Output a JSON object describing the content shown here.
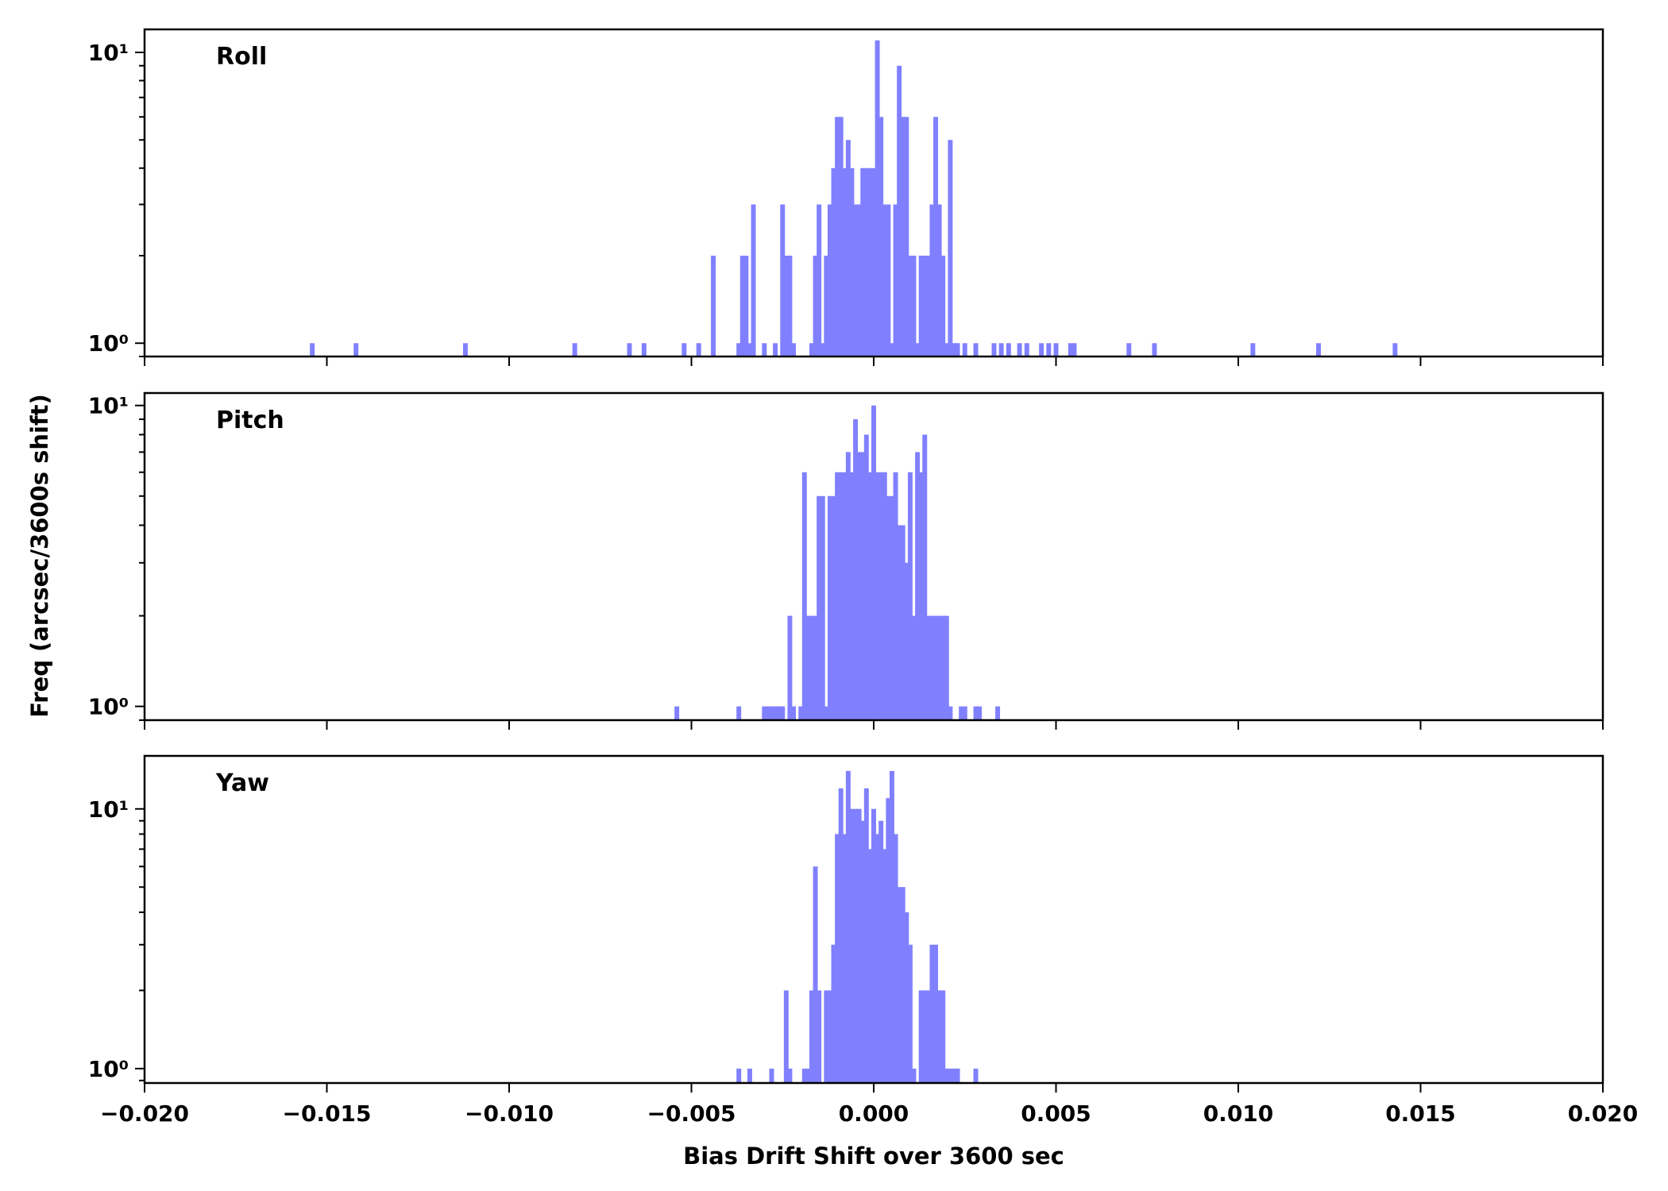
{
  "chart_data": {
    "type": "bar",
    "xlabel": "Bias Drift Shift over 3600 sec",
    "ylabel": "Freq (arcsec/3600s shift)",
    "xlim": [
      -0.02,
      0.02
    ],
    "x_ticks": [
      -0.02,
      -0.015,
      -0.01,
      -0.005,
      0.0,
      0.005,
      0.01,
      0.015,
      0.02
    ],
    "x_tick_labels": [
      "−0.020",
      "−0.015",
      "−0.010",
      "−0.005",
      "0.000",
      "0.005",
      "0.010",
      "0.015",
      "0.020"
    ],
    "y_scale": "log",
    "bin_width": 0.00013,
    "grid": false,
    "panels": [
      {
        "name": "Roll",
        "ylim": [
          0.9,
          12
        ],
        "y_tick_labels": [
          "10⁰",
          "10¹"
        ],
        "bins": [
          [
            -0.0154,
            1
          ],
          [
            -0.0142,
            1
          ],
          [
            -0.0112,
            1
          ],
          [
            -0.0082,
            1
          ],
          [
            -0.0067,
            1
          ],
          [
            -0.0063,
            1
          ],
          [
            -0.0052,
            1
          ],
          [
            -0.0048,
            1
          ],
          [
            -0.0044,
            2
          ],
          [
            -0.0037,
            1
          ],
          [
            -0.0036,
            2
          ],
          [
            -0.0035,
            2
          ],
          [
            -0.0034,
            1
          ],
          [
            -0.0033,
            3
          ],
          [
            -0.003,
            1
          ],
          [
            -0.0027,
            1
          ],
          [
            -0.0025,
            3
          ],
          [
            -0.0024,
            2
          ],
          [
            -0.0023,
            2
          ],
          [
            -0.0022,
            1
          ],
          [
            -0.0017,
            1
          ],
          [
            -0.0016,
            2
          ],
          [
            -0.0015,
            3
          ],
          [
            -0.0014,
            1
          ],
          [
            -0.0013,
            2
          ],
          [
            -0.0012,
            3
          ],
          [
            -0.0011,
            4
          ],
          [
            -0.001,
            6
          ],
          [
            -0.0009,
            6
          ],
          [
            -0.0008,
            4
          ],
          [
            -0.0007,
            5
          ],
          [
            -0.0006,
            4
          ],
          [
            -0.0005,
            3
          ],
          [
            -0.0004,
            3
          ],
          [
            -0.0003,
            4
          ],
          [
            -0.0002,
            4
          ],
          [
            -0.0001,
            4
          ],
          [
            0.0,
            4
          ],
          [
            0.0001,
            11
          ],
          [
            0.0002,
            6
          ],
          [
            0.0003,
            3
          ],
          [
            0.0004,
            3
          ],
          [
            0.0005,
            1
          ],
          [
            0.0006,
            3
          ],
          [
            0.0007,
            9
          ],
          [
            0.0008,
            6
          ],
          [
            0.0009,
            6
          ],
          [
            0.001,
            2
          ],
          [
            0.0011,
            2
          ],
          [
            0.0012,
            1
          ],
          [
            0.0013,
            2
          ],
          [
            0.0014,
            2
          ],
          [
            0.0015,
            2
          ],
          [
            0.0016,
            3
          ],
          [
            0.0017,
            6
          ],
          [
            0.0018,
            3
          ],
          [
            0.0019,
            2
          ],
          [
            0.002,
            1
          ],
          [
            0.0021,
            5
          ],
          [
            0.0022,
            1
          ],
          [
            0.0023,
            1
          ],
          [
            0.0025,
            1
          ],
          [
            0.0028,
            1
          ],
          [
            0.0033,
            1
          ],
          [
            0.0035,
            1
          ],
          [
            0.0037,
            1
          ],
          [
            0.004,
            1
          ],
          [
            0.0042,
            1
          ],
          [
            0.0046,
            1
          ],
          [
            0.0048,
            1
          ],
          [
            0.005,
            1
          ],
          [
            0.0054,
            1
          ],
          [
            0.0055,
            1
          ],
          [
            0.007,
            1
          ],
          [
            0.0077,
            1
          ],
          [
            0.0104,
            1
          ],
          [
            0.0122,
            1
          ],
          [
            0.0143,
            1
          ]
        ]
      },
      {
        "name": "Pitch",
        "ylim": [
          0.9,
          11
        ],
        "y_tick_labels": [
          "10⁰",
          "10¹"
        ],
        "bins": [
          [
            -0.0054,
            1
          ],
          [
            -0.0037,
            1
          ],
          [
            -0.003,
            1
          ],
          [
            -0.0029,
            1
          ],
          [
            -0.0028,
            1
          ],
          [
            -0.0027,
            1
          ],
          [
            -0.0026,
            1
          ],
          [
            -0.0025,
            1
          ],
          [
            -0.0023,
            2
          ],
          [
            -0.0022,
            1
          ],
          [
            -0.002,
            1
          ],
          [
            -0.0019,
            6
          ],
          [
            -0.0018,
            2
          ],
          [
            -0.0017,
            2
          ],
          [
            -0.0016,
            2
          ],
          [
            -0.0015,
            5
          ],
          [
            -0.0014,
            5
          ],
          [
            -0.0013,
            1
          ],
          [
            -0.0012,
            5
          ],
          [
            -0.0011,
            5
          ],
          [
            -0.001,
            6
          ],
          [
            -0.0009,
            6
          ],
          [
            -0.0008,
            6
          ],
          [
            -0.0007,
            7
          ],
          [
            -0.0006,
            6
          ],
          [
            -0.0005,
            9
          ],
          [
            -0.0004,
            7
          ],
          [
            -0.0003,
            7
          ],
          [
            -0.0002,
            8
          ],
          [
            -0.0001,
            6
          ],
          [
            0.0,
            10
          ],
          [
            0.0001,
            6
          ],
          [
            0.0002,
            6
          ],
          [
            0.0003,
            6
          ],
          [
            0.0004,
            5
          ],
          [
            0.0005,
            5
          ],
          [
            0.0006,
            6
          ],
          [
            0.0007,
            4
          ],
          [
            0.0008,
            4
          ],
          [
            0.0009,
            3
          ],
          [
            0.001,
            6
          ],
          [
            0.0011,
            2
          ],
          [
            0.0012,
            7
          ],
          [
            0.0013,
            6
          ],
          [
            0.0014,
            8
          ],
          [
            0.0015,
            2
          ],
          [
            0.0016,
            2
          ],
          [
            0.0017,
            2
          ],
          [
            0.0018,
            2
          ],
          [
            0.0019,
            2
          ],
          [
            0.002,
            2
          ],
          [
            0.0021,
            1
          ],
          [
            0.0024,
            1
          ],
          [
            0.0025,
            1
          ],
          [
            0.0028,
            1
          ],
          [
            0.0029,
            1
          ],
          [
            0.0034,
            1
          ]
        ]
      },
      {
        "name": "Yaw",
        "ylim": [
          0.88,
          16
        ],
        "y_tick_labels": [
          "10⁰",
          "10¹"
        ],
        "bins": [
          [
            -0.0037,
            1
          ],
          [
            -0.0034,
            1
          ],
          [
            -0.0028,
            1
          ],
          [
            -0.0024,
            2
          ],
          [
            -0.0023,
            1
          ],
          [
            -0.0019,
            1
          ],
          [
            -0.0018,
            1
          ],
          [
            -0.0017,
            2
          ],
          [
            -0.0016,
            6
          ],
          [
            -0.0015,
            2
          ],
          [
            -0.0013,
            2
          ],
          [
            -0.0012,
            2
          ],
          [
            -0.0011,
            3
          ],
          [
            -0.001,
            8
          ],
          [
            -0.0009,
            12
          ],
          [
            -0.0008,
            8
          ],
          [
            -0.0007,
            14
          ],
          [
            -0.0006,
            10
          ],
          [
            -0.0005,
            10
          ],
          [
            -0.0004,
            10
          ],
          [
            -0.0003,
            9
          ],
          [
            -0.0002,
            12
          ],
          [
            -0.0001,
            7
          ],
          [
            0.0,
            10
          ],
          [
            0.0001,
            8
          ],
          [
            0.0002,
            9
          ],
          [
            0.0003,
            7
          ],
          [
            0.0004,
            11
          ],
          [
            0.0005,
            14
          ],
          [
            0.0006,
            8
          ],
          [
            0.0007,
            5
          ],
          [
            0.0008,
            5
          ],
          [
            0.0009,
            4
          ],
          [
            0.001,
            3
          ],
          [
            0.0011,
            1
          ],
          [
            0.0013,
            2
          ],
          [
            0.0014,
            2
          ],
          [
            0.0015,
            2
          ],
          [
            0.0016,
            3
          ],
          [
            0.0017,
            3
          ],
          [
            0.0018,
            2
          ],
          [
            0.0019,
            2
          ],
          [
            0.002,
            1
          ],
          [
            0.0021,
            1
          ],
          [
            0.0022,
            1
          ],
          [
            0.0023,
            1
          ],
          [
            0.0028,
            1
          ]
        ]
      }
    ]
  }
}
